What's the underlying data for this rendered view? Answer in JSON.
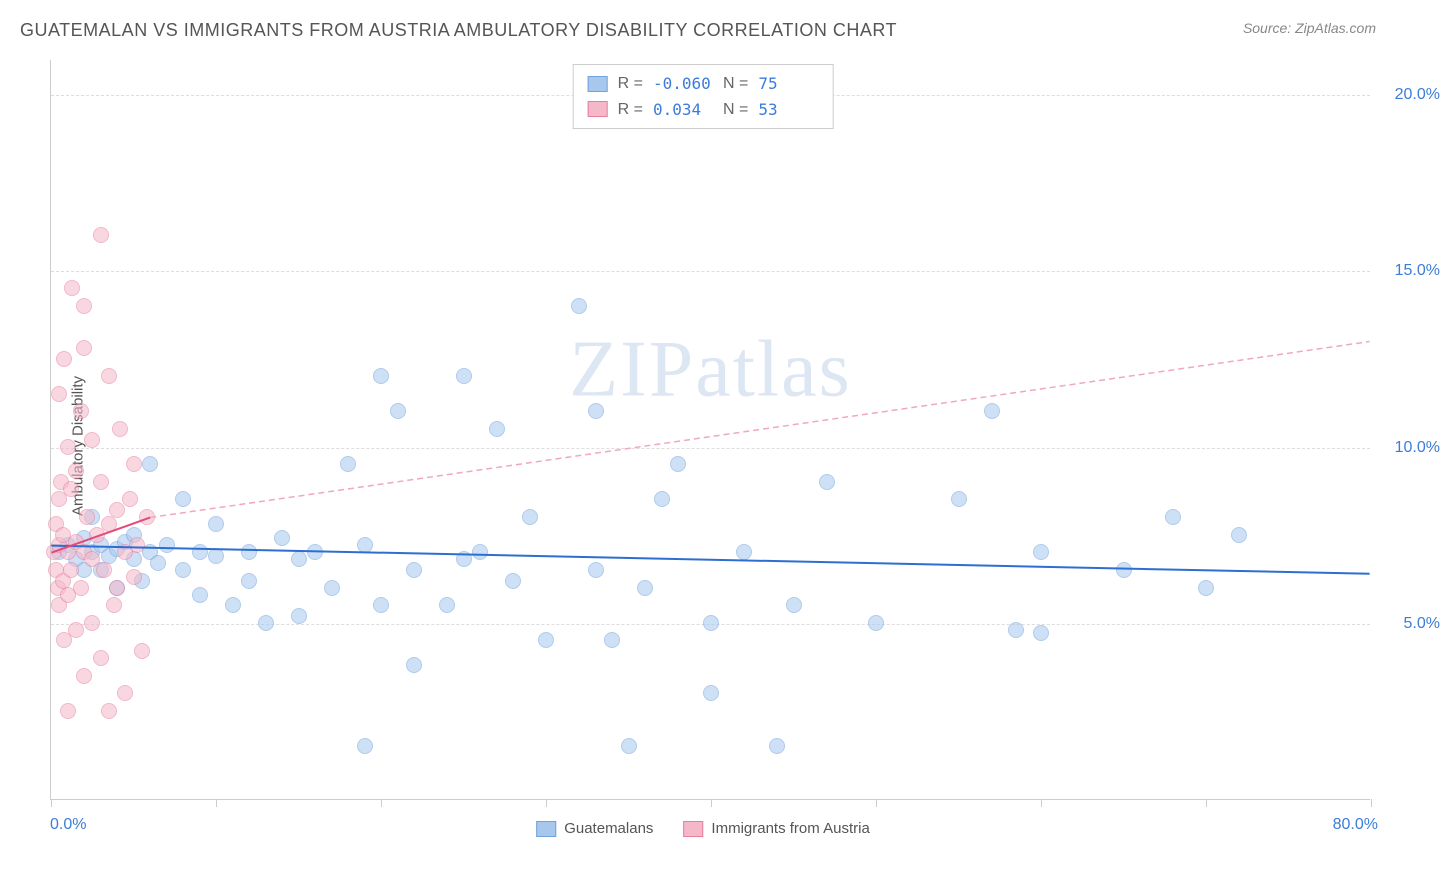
{
  "title": "GUATEMALAN VS IMMIGRANTS FROM AUSTRIA AMBULATORY DISABILITY CORRELATION CHART",
  "source": "Source: ZipAtlas.com",
  "watermark": "ZIPatlas",
  "chart": {
    "type": "scatter",
    "xlim": [
      0,
      80
    ],
    "ylim": [
      0,
      21
    ],
    "yticks": [
      5,
      10,
      15,
      20
    ],
    "ytick_labels": [
      "5.0%",
      "10.0%",
      "15.0%",
      "20.0%"
    ],
    "xticks": [
      0,
      10,
      20,
      30,
      40,
      50,
      60,
      70,
      80
    ],
    "x_start_label": "0.0%",
    "x_end_label": "80.0%",
    "yaxis_label": "Ambulatory Disability",
    "background_color": "#ffffff",
    "grid_color": "#dddddd",
    "axis_color": "#cccccc",
    "tick_label_color": "#3b7dd8",
    "series": [
      {
        "name": "Guatemalans",
        "fill_color": "#a7c7ed",
        "border_color": "#6fa3dd",
        "fill_opacity": 0.55,
        "marker_radius": 8,
        "R": "-0.060",
        "N": "75",
        "regression": {
          "x1": 0,
          "y1": 7.2,
          "x2": 80,
          "y2": 6.4,
          "color": "#2d6fd0",
          "width": 2,
          "dash": "none"
        },
        "points": [
          [
            0.5,
            7.0
          ],
          [
            1.0,
            7.2
          ],
          [
            1.5,
            6.8
          ],
          [
            2.0,
            7.4
          ],
          [
            2.0,
            6.5
          ],
          [
            2.5,
            7.0
          ],
          [
            2.5,
            8.0
          ],
          [
            3.0,
            6.5
          ],
          [
            3.0,
            7.2
          ],
          [
            3.5,
            6.9
          ],
          [
            4.0,
            7.1
          ],
          [
            4.0,
            6.0
          ],
          [
            4.5,
            7.3
          ],
          [
            5.0,
            6.8
          ],
          [
            5.0,
            7.5
          ],
          [
            5.5,
            6.2
          ],
          [
            6.0,
            7.0
          ],
          [
            6.0,
            9.5
          ],
          [
            6.5,
            6.7
          ],
          [
            7.0,
            7.2
          ],
          [
            8.0,
            6.5
          ],
          [
            8.0,
            8.5
          ],
          [
            9.0,
            5.8
          ],
          [
            9.0,
            7.0
          ],
          [
            10.0,
            6.9
          ],
          [
            10.0,
            7.8
          ],
          [
            11.0,
            5.5
          ],
          [
            12.0,
            6.2
          ],
          [
            12.0,
            7.0
          ],
          [
            13.0,
            5.0
          ],
          [
            14.0,
            7.4
          ],
          [
            15.0,
            6.8
          ],
          [
            15.0,
            5.2
          ],
          [
            16.0,
            7.0
          ],
          [
            17.0,
            6.0
          ],
          [
            18.0,
            9.5
          ],
          [
            19.0,
            7.2
          ],
          [
            19.0,
            1.5
          ],
          [
            20.0,
            12.0
          ],
          [
            20.0,
            5.5
          ],
          [
            21.0,
            11.0
          ],
          [
            22.0,
            3.8
          ],
          [
            22.0,
            6.5
          ],
          [
            24.0,
            5.5
          ],
          [
            25.0,
            12.0
          ],
          [
            25.0,
            6.8
          ],
          [
            26.0,
            7.0
          ],
          [
            27.0,
            10.5
          ],
          [
            28.0,
            6.2
          ],
          [
            29.0,
            8.0
          ],
          [
            30.0,
            4.5
          ],
          [
            32.0,
            14.0
          ],
          [
            33.0,
            11.0
          ],
          [
            33.0,
            6.5
          ],
          [
            34.0,
            4.5
          ],
          [
            35.0,
            1.5
          ],
          [
            36.0,
            6.0
          ],
          [
            37.0,
            8.5
          ],
          [
            38.0,
            9.5
          ],
          [
            40.0,
            5.0
          ],
          [
            40.0,
            3.0
          ],
          [
            42.0,
            7.0
          ],
          [
            44.0,
            1.5
          ],
          [
            45.0,
            5.5
          ],
          [
            47.0,
            9.0
          ],
          [
            50.0,
            5.0
          ],
          [
            55.0,
            8.5
          ],
          [
            57.0,
            11.0
          ],
          [
            58.5,
            4.8
          ],
          [
            60.0,
            4.7
          ],
          [
            60.0,
            7.0
          ],
          [
            65.0,
            6.5
          ],
          [
            68.0,
            8.0
          ],
          [
            70.0,
            6.0
          ],
          [
            72.0,
            7.5
          ]
        ]
      },
      {
        "name": "Immigrants from Austria",
        "fill_color": "#f5b8c9",
        "border_color": "#e77da0",
        "fill_opacity": 0.55,
        "marker_radius": 8,
        "R": "0.034",
        "N": "53",
        "regression_solid": {
          "x1": 0,
          "y1": 7.0,
          "x2": 6,
          "y2": 8.0,
          "color": "#e04b7a",
          "width": 2
        },
        "regression_dashed": {
          "x1": 6,
          "y1": 8.0,
          "x2": 80,
          "y2": 13.0,
          "color": "#f0a8bd",
          "width": 1.5,
          "dash": "6,4"
        },
        "points": [
          [
            0.2,
            7.0
          ],
          [
            0.3,
            6.5
          ],
          [
            0.3,
            7.8
          ],
          [
            0.4,
            6.0
          ],
          [
            0.5,
            8.5
          ],
          [
            0.5,
            5.5
          ],
          [
            0.5,
            7.2
          ],
          [
            0.6,
            9.0
          ],
          [
            0.7,
            6.2
          ],
          [
            0.7,
            7.5
          ],
          [
            0.8,
            4.5
          ],
          [
            0.8,
            12.5
          ],
          [
            1.0,
            5.8
          ],
          [
            1.0,
            7.0
          ],
          [
            1.0,
            10.0
          ],
          [
            1.2,
            6.5
          ],
          [
            1.2,
            8.8
          ],
          [
            1.3,
            14.5
          ],
          [
            1.5,
            4.8
          ],
          [
            1.5,
            7.3
          ],
          [
            1.5,
            9.3
          ],
          [
            1.8,
            6.0
          ],
          [
            1.8,
            11.0
          ],
          [
            2.0,
            3.5
          ],
          [
            2.0,
            7.0
          ],
          [
            2.0,
            12.8
          ],
          [
            2.2,
            8.0
          ],
          [
            2.5,
            5.0
          ],
          [
            2.5,
            6.8
          ],
          [
            2.5,
            10.2
          ],
          [
            2.8,
            7.5
          ],
          [
            3.0,
            4.0
          ],
          [
            3.0,
            9.0
          ],
          [
            3.0,
            16.0
          ],
          [
            3.2,
            6.5
          ],
          [
            3.5,
            2.5
          ],
          [
            3.5,
            7.8
          ],
          [
            3.8,
            5.5
          ],
          [
            4.0,
            8.2
          ],
          [
            4.0,
            6.0
          ],
          [
            4.2,
            10.5
          ],
          [
            4.5,
            7.0
          ],
          [
            4.5,
            3.0
          ],
          [
            4.8,
            8.5
          ],
          [
            5.0,
            6.3
          ],
          [
            5.0,
            9.5
          ],
          [
            5.2,
            7.2
          ],
          [
            5.5,
            4.2
          ],
          [
            5.8,
            8.0
          ],
          [
            1.0,
            2.5
          ],
          [
            2.0,
            14.0
          ],
          [
            0.5,
            11.5
          ],
          [
            3.5,
            12.0
          ]
        ]
      }
    ]
  },
  "legend": {
    "items": [
      {
        "label": "Guatemalans",
        "fill": "#a7c7ed",
        "border": "#6fa3dd"
      },
      {
        "label": "Immigrants from Austria",
        "fill": "#f5b8c9",
        "border": "#e77da0"
      }
    ]
  },
  "stats_box": {
    "rows": [
      {
        "swatch_fill": "#a7c7ed",
        "swatch_border": "#6fa3dd",
        "r_label": "R =",
        "r_value": "-0.060",
        "n_label": "N =",
        "n_value": "75"
      },
      {
        "swatch_fill": "#f5b8c9",
        "swatch_border": "#e77da0",
        "r_label": "R =",
        "r_value": " 0.034",
        "n_label": "N =",
        "n_value": "53"
      }
    ]
  }
}
